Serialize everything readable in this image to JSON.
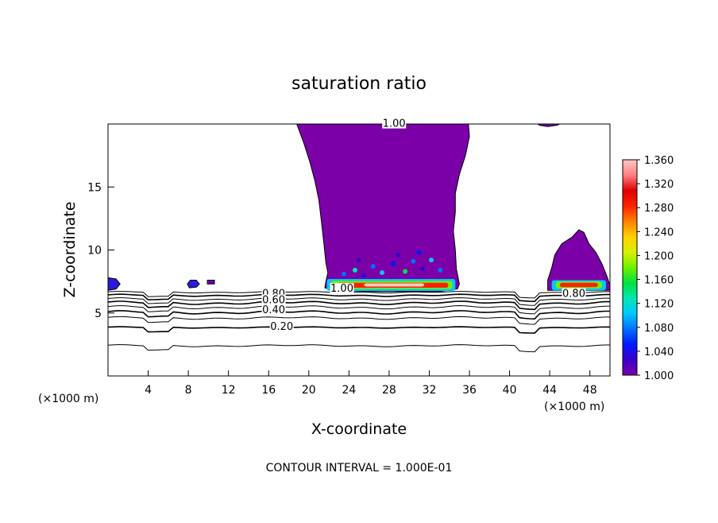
{
  "chart_data": {
    "type": "contour",
    "title": "saturation ratio",
    "xlabel": "X-coordinate",
    "ylabel": "Z-coordinate",
    "x_unit": "(×1000 m)",
    "x_unit_right": "(×1000 m)",
    "xlim": [
      0,
      50
    ],
    "ylim": [
      0,
      20
    ],
    "x_ticks": [
      4,
      8,
      12,
      16,
      20,
      24,
      28,
      32,
      36,
      40,
      44,
      48
    ],
    "y_ticks": [
      5,
      10,
      15
    ],
    "contour_interval_text": "CONTOUR INTERVAL = 1.000E-01",
    "contour_labels": [
      {
        "text": "1.00",
        "x": 28.5,
        "z": 19.9
      },
      {
        "text": "1.00",
        "x": 23.3,
        "z": 6.8
      },
      {
        "text": "0.80",
        "x": 16.5,
        "z": 6.4
      },
      {
        "text": "0.60",
        "x": 16.5,
        "z": 5.9
      },
      {
        "text": "0.40",
        "x": 16.5,
        "z": 5.1
      },
      {
        "text": "0.20",
        "x": 17.3,
        "z": 3.8
      },
      {
        "text": "0.80",
        "x": 46.4,
        "z": 6.4
      }
    ],
    "colorbar": {
      "min": 1.0,
      "max": 1.36,
      "ticks": [
        "1.360",
        "1.320",
        "1.280",
        "1.240",
        "1.200",
        "1.160",
        "1.120",
        "1.080",
        "1.040",
        "1.000"
      ],
      "colors": [
        "#7b00a8",
        "#3a00c8",
        "#0018ff",
        "#0070ff",
        "#00c8ff",
        "#00e8b0",
        "#00e040",
        "#70f000",
        "#d8f000",
        "#ffd000",
        "#ff8000",
        "#ff2000",
        "#e00000",
        "#ff8080",
        "#ffc8c8"
      ]
    },
    "supersaturated_region_color": "#7b00a8",
    "line_color": "#000000",
    "grid": false
  }
}
